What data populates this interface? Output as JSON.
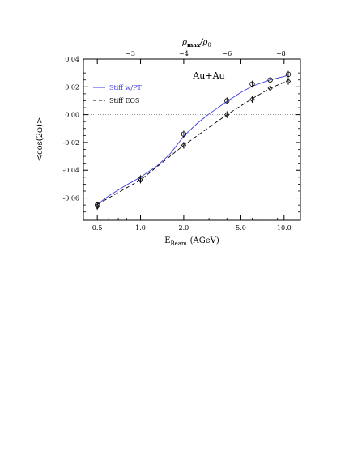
{
  "chart_data": {
    "type": "line",
    "title": "Au+Au",
    "xlabel": {
      "main": "E",
      "sub": "Beam",
      "unit": "(AGeV)"
    },
    "ylabel": "<cos(2φ)>",
    "top_axis": {
      "label": {
        "main": "ρ",
        "sub": "max",
        "rest": "/ρ",
        "sub2": "0"
      },
      "ticks": [
        {
          "x": 0.85,
          "label": "~3"
        },
        {
          "x": 2.0,
          "label": "~4"
        },
        {
          "x": 4.0,
          "label": "~6"
        },
        {
          "x": 9.5,
          "label": "~8"
        }
      ]
    },
    "x_scale": "log",
    "xlim": [
      0.4,
      13.0
    ],
    "ylim": [
      -0.076,
      0.04
    ],
    "x_major_ticks": [
      {
        "value": 0.5,
        "label": "0.5"
      },
      {
        "value": 1.0,
        "label": "1.0"
      },
      {
        "value": 2.0,
        "label": "2.0"
      },
      {
        "value": 5.0,
        "label": "5.0"
      },
      {
        "value": 10.0,
        "label": "10.0"
      }
    ],
    "y_major_ticks": [
      {
        "value": -0.06,
        "label": "-0.06"
      },
      {
        "value": -0.04,
        "label": "-0.04"
      },
      {
        "value": -0.02,
        "label": "-0.02"
      },
      {
        "value": 0.0,
        "label": "0.00"
      },
      {
        "value": 0.02,
        "label": "0.02"
      },
      {
        "value": 0.04,
        "label": "0.04"
      }
    ],
    "zero_line": true,
    "legend": {
      "position": "top-left",
      "entries": [
        {
          "label": "Stiff w/PT",
          "color": "#3a3ae0",
          "dash": "solid"
        },
        {
          "label": "Stiff EOS",
          "color": "#000000",
          "dash": "dashed"
        }
      ]
    },
    "series": [
      {
        "name": "Stiff w/PT",
        "color": "#3a3ae0",
        "dash": "solid",
        "x": [
          0.5,
          0.6,
          0.8,
          1.0,
          1.3,
          1.6,
          2.0,
          2.5,
          3.0,
          4.0,
          5.0,
          6.0,
          8.0,
          10.0,
          10.7
        ],
        "y": [
          -0.0645,
          -0.0585,
          -0.0505,
          -0.045,
          -0.037,
          -0.0285,
          -0.0155,
          -0.006,
          0.0005,
          0.0095,
          0.016,
          0.0205,
          0.025,
          0.0275,
          0.0285
        ],
        "markers_x": [
          0.5,
          1.0,
          2.0,
          4.0,
          6.0,
          8.0,
          10.7
        ],
        "markers_y": [
          -0.065,
          -0.046,
          -0.014,
          0.01,
          0.022,
          0.025,
          0.029
        ],
        "marker": "circle"
      },
      {
        "name": "Stiff EOS",
        "color": "#000000",
        "dash": "dashed",
        "x": [
          0.5,
          1.0,
          2.0,
          4.0,
          6.0,
          8.0,
          10.7
        ],
        "y": [
          -0.0645,
          -0.047,
          -0.022,
          0.0,
          0.0115,
          0.019,
          0.0245
        ],
        "markers_x": [
          0.5,
          1.0,
          2.0,
          4.0,
          6.0,
          8.0,
          10.7
        ],
        "markers_y": [
          -0.066,
          -0.047,
          -0.022,
          0.0,
          0.011,
          0.019,
          0.024
        ],
        "marker": "diamond"
      }
    ],
    "error_bar": 0.0025
  }
}
